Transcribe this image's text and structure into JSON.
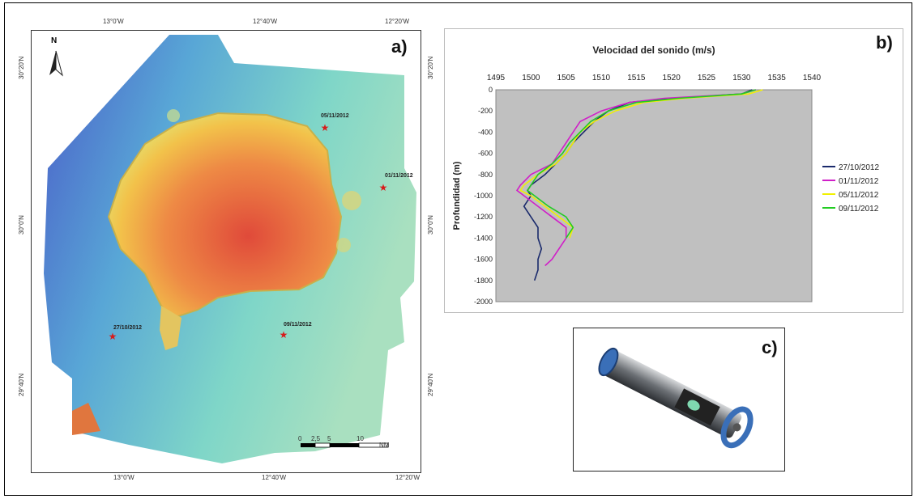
{
  "panels": {
    "map_label": "a)",
    "chart_label": "b)",
    "photo_label": "c)"
  },
  "map": {
    "top_lon_labels": [
      "13°0'W",
      "12°40'W",
      "12°20'W"
    ],
    "bottom_lon_labels": [
      "13°0'W",
      "12°40'W",
      "12°20'W"
    ],
    "left_lat_labels": [
      "30°20'N",
      "30°0'N",
      "29°40'N"
    ],
    "right_lat_labels": [
      "30°20'N",
      "30°0'N",
      "29°40'N"
    ],
    "north_label": "N",
    "scale_ticks": [
      "0",
      "2,5",
      "5",
      "10"
    ],
    "scale_unit": "NM",
    "stations": [
      {
        "label": "05/11/2012"
      },
      {
        "label": "01/11/2012"
      },
      {
        "label": "27/10/2012"
      },
      {
        "label": "09/11/2012"
      }
    ],
    "colors": {
      "shallow": "#e04a3a",
      "mid": "#f2c24a",
      "deep": "#4a5bc8",
      "marker": "#d81b1b"
    }
  },
  "chart_data": {
    "type": "line",
    "title": "Velocidad del sonido (m/s)",
    "xlabel": "",
    "ylabel": "Profundidad (m)",
    "xlim": [
      1495,
      1540
    ],
    "ylim": [
      -2000,
      0
    ],
    "x_ticks": [
      1495,
      1500,
      1505,
      1510,
      1515,
      1520,
      1525,
      1530,
      1535,
      1540
    ],
    "y_ticks": [
      0,
      -200,
      -400,
      -600,
      -800,
      -1000,
      -1200,
      -1400,
      -1600,
      -1800,
      -2000
    ],
    "x_axis_position": "top",
    "grid": false,
    "plot_background": "#c0c0c0",
    "legend_position": "right",
    "series": [
      {
        "name": "27/10/2012",
        "color": "#1a2a6c",
        "points": [
          [
            1531.5,
            0
          ],
          [
            1530,
            -40
          ],
          [
            1520,
            -80
          ],
          [
            1514,
            -120
          ],
          [
            1511,
            -200
          ],
          [
            1509,
            -300
          ],
          [
            1507.5,
            -400
          ],
          [
            1506,
            -500
          ],
          [
            1505,
            -600
          ],
          [
            1503.5,
            -700
          ],
          [
            1502,
            -800
          ],
          [
            1500,
            -900
          ],
          [
            1499.5,
            -950
          ],
          [
            1500,
            -1000
          ],
          [
            1499.5,
            -1050
          ],
          [
            1499,
            -1100
          ],
          [
            1500,
            -1200
          ],
          [
            1501,
            -1300
          ],
          [
            1501,
            -1400
          ],
          [
            1501.5,
            -1500
          ],
          [
            1501,
            -1600
          ],
          [
            1501,
            -1700
          ],
          [
            1500.5,
            -1800
          ]
        ]
      },
      {
        "name": "01/11/2012",
        "color": "#d020c8",
        "points": [
          [
            1532,
            0
          ],
          [
            1530,
            -40
          ],
          [
            1519,
            -80
          ],
          [
            1514,
            -120
          ],
          [
            1510,
            -200
          ],
          [
            1507,
            -300
          ],
          [
            1506,
            -400
          ],
          [
            1505,
            -500
          ],
          [
            1504,
            -600
          ],
          [
            1503,
            -700
          ],
          [
            1500,
            -800
          ],
          [
            1498.5,
            -900
          ],
          [
            1498,
            -950
          ],
          [
            1499,
            -1000
          ],
          [
            1501,
            -1100
          ],
          [
            1503,
            -1200
          ],
          [
            1505,
            -1300
          ],
          [
            1505,
            -1400
          ],
          [
            1504,
            -1500
          ],
          [
            1503,
            -1600
          ],
          [
            1502,
            -1660
          ]
        ]
      },
      {
        "name": "05/11/2012",
        "color": "#f0f000",
        "points": [
          [
            1533,
            0
          ],
          [
            1531,
            -40
          ],
          [
            1522,
            -80
          ],
          [
            1516,
            -120
          ],
          [
            1512,
            -200
          ],
          [
            1509,
            -300
          ],
          [
            1507,
            -400
          ],
          [
            1506,
            -500
          ],
          [
            1505,
            -600
          ],
          [
            1503.5,
            -700
          ],
          [
            1501,
            -800
          ],
          [
            1499,
            -900
          ],
          [
            1498.5,
            -950
          ],
          [
            1500,
            -1000
          ],
          [
            1502,
            -1100
          ],
          [
            1504,
            -1200
          ],
          [
            1506,
            -1300
          ],
          [
            1505.5,
            -1400
          ]
        ]
      },
      {
        "name": "09/11/2012",
        "color": "#22cc22",
        "points": [
          [
            1532,
            0
          ],
          [
            1530,
            -40
          ],
          [
            1521,
            -80
          ],
          [
            1515,
            -120
          ],
          [
            1511,
            -200
          ],
          [
            1508.5,
            -300
          ],
          [
            1507,
            -400
          ],
          [
            1505.5,
            -500
          ],
          [
            1504.5,
            -600
          ],
          [
            1503,
            -700
          ],
          [
            1501,
            -800
          ],
          [
            1500,
            -900
          ],
          [
            1499.5,
            -950
          ],
          [
            1500.5,
            -1000
          ],
          [
            1502.5,
            -1100
          ],
          [
            1505,
            -1200
          ],
          [
            1506,
            -1300
          ],
          [
            1505,
            -1400
          ]
        ]
      }
    ]
  }
}
